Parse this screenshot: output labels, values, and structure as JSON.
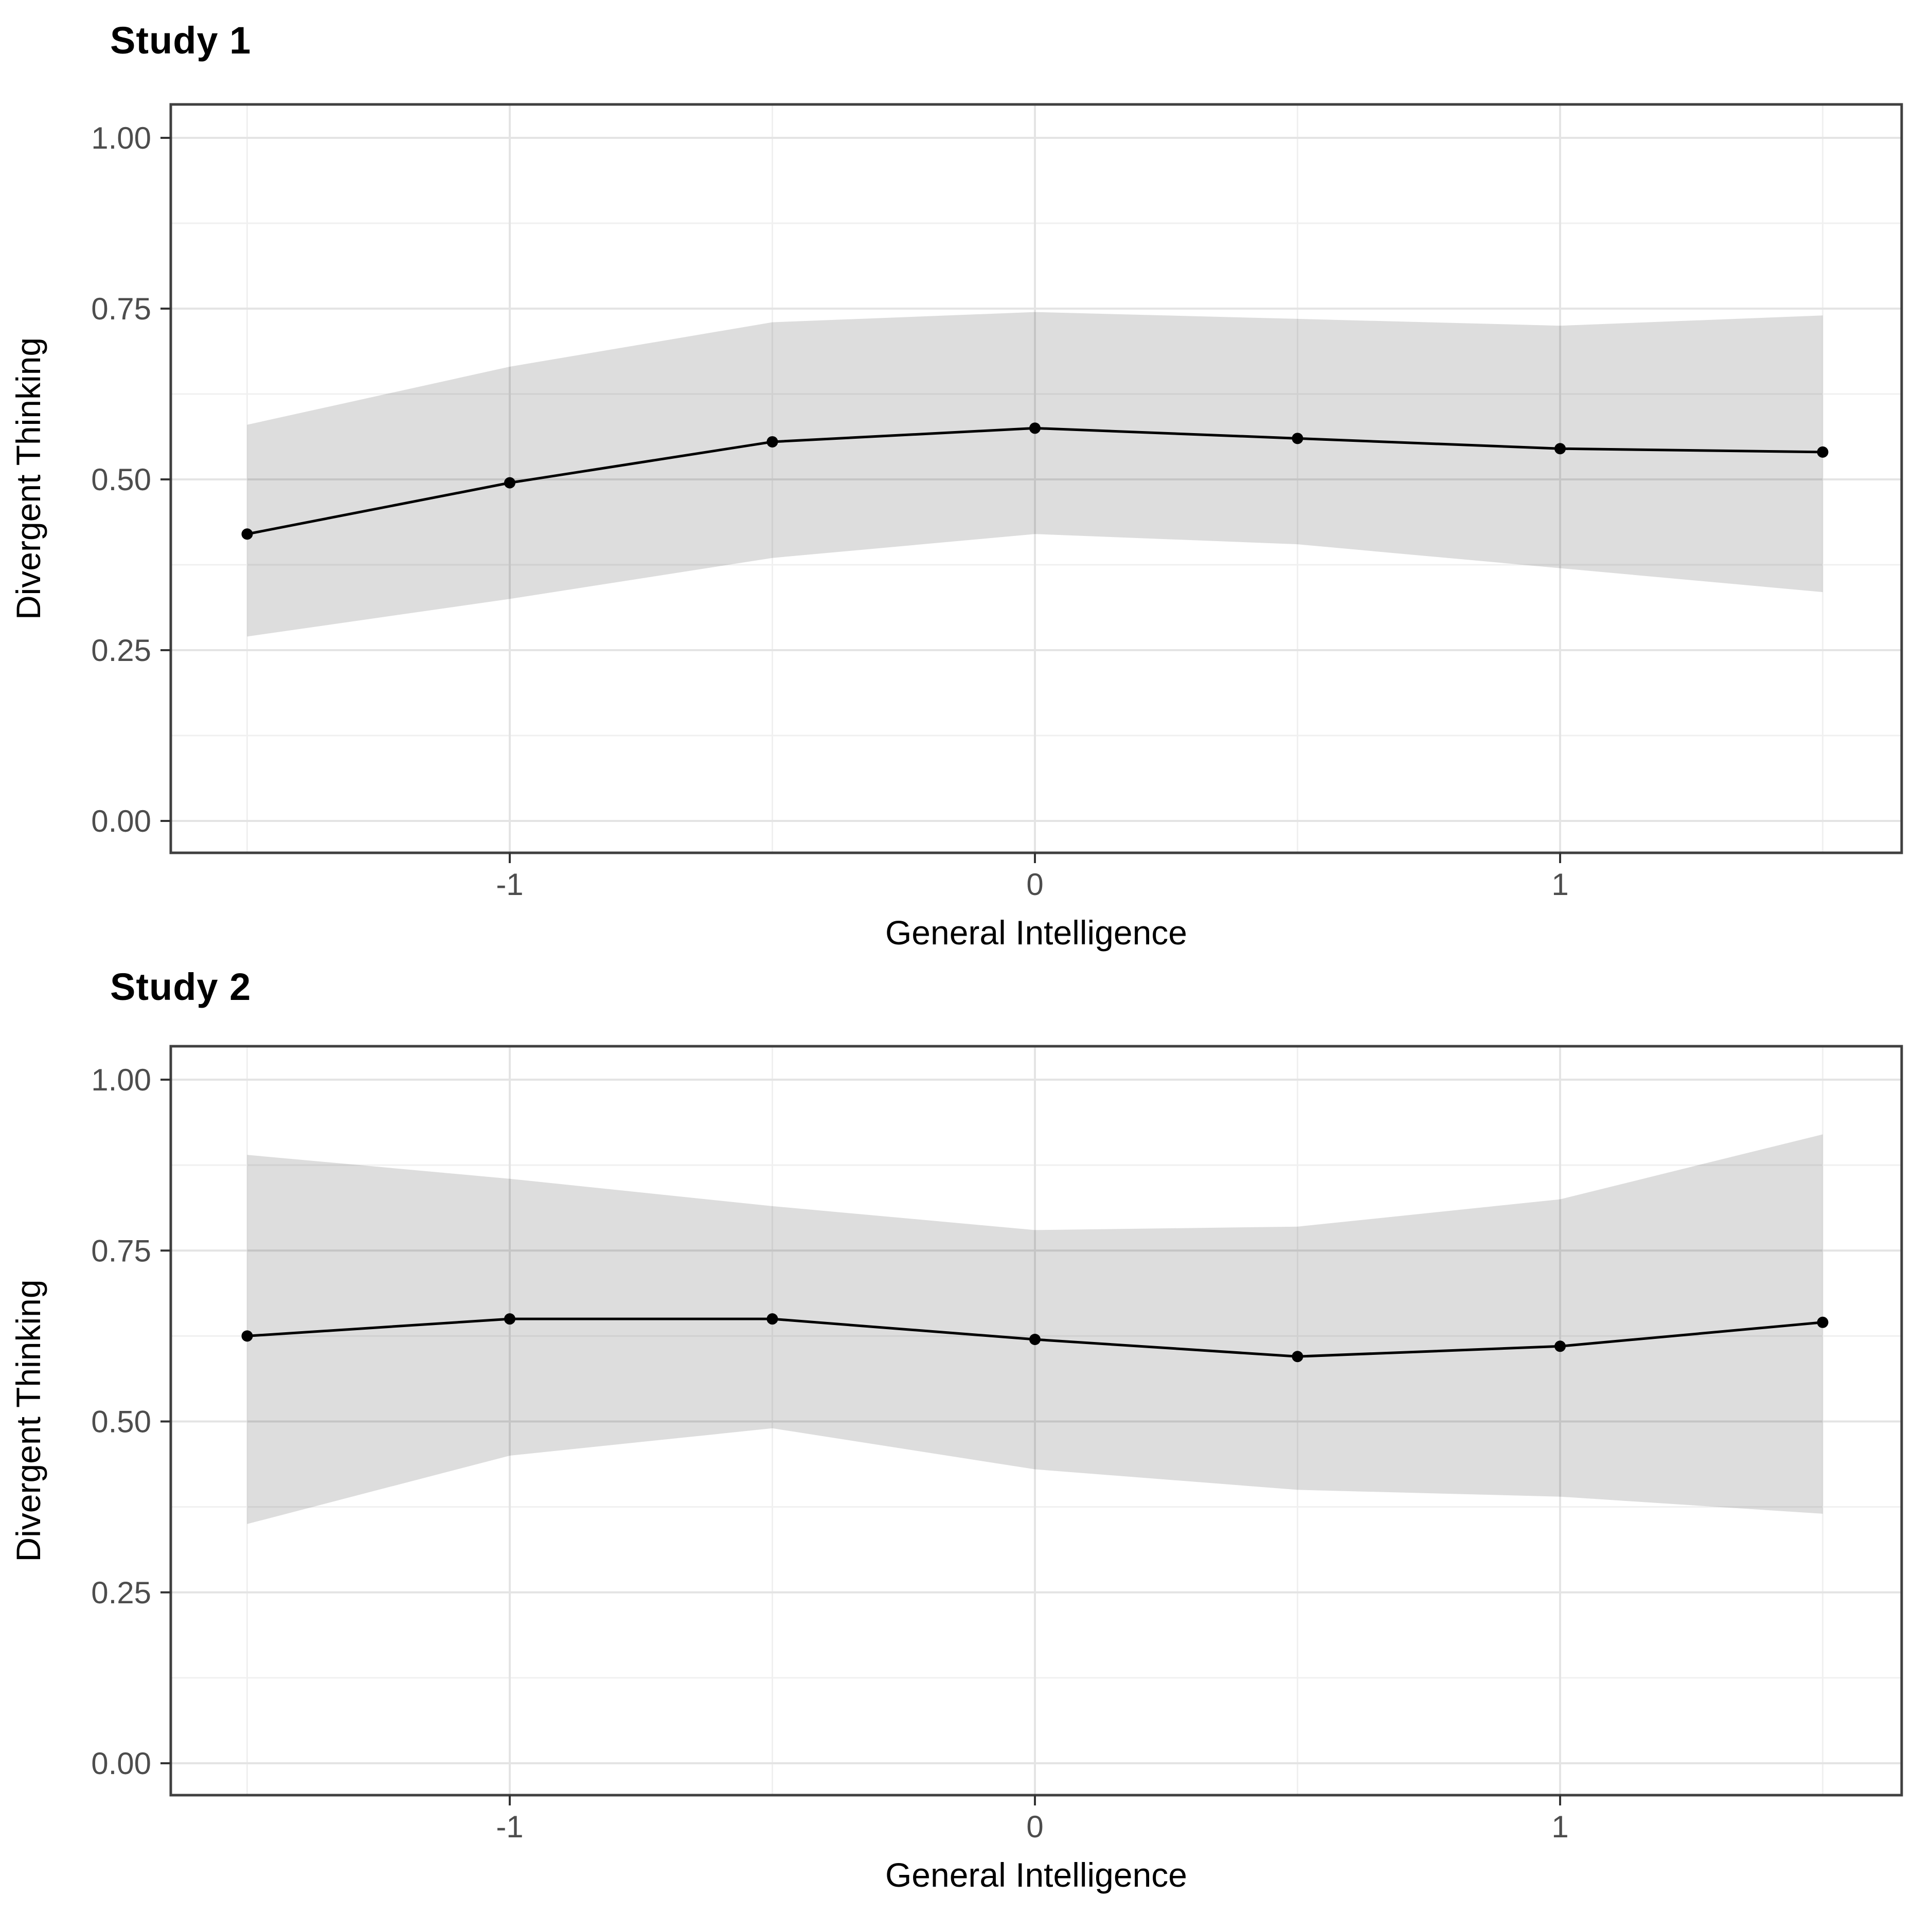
{
  "figure": {
    "background_color": "#ffffff",
    "panel_border_color": "#404040",
    "grid_major_color": "#e4e4e4",
    "grid_minor_color": "#f0f0f0",
    "ribbon_color": "rgba(0,0,0,0.135)",
    "line_color": "#000000",
    "point_color": "#000000",
    "tick_mark_color": "#333333",
    "tick_label_color": "#4d4d4d",
    "axis_title_color": "#000000"
  },
  "chart_data": [
    {
      "type": "line",
      "title": "Study 1",
      "xlabel": "General Intelligence",
      "ylabel": "Divergent Thinking",
      "xlim": [
        -1.645,
        1.65
      ],
      "ylim": [
        -0.047,
        1.049
      ],
      "grid": "on",
      "legend": "none",
      "x_tick_labels": [
        "-1",
        "0",
        "1"
      ],
      "x_tick_values": [
        -1,
        0,
        1
      ],
      "x_minor_values": [
        -1.5,
        -0.5,
        0.5,
        1.5
      ],
      "y_tick_labels": [
        "0.00",
        "0.25",
        "0.50",
        "0.75",
        "1.00"
      ],
      "y_tick_values": [
        0,
        0.25,
        0.5,
        0.75,
        1.0
      ],
      "y_minor_values": [
        0.125,
        0.375,
        0.625,
        0.875
      ],
      "series": [
        {
          "name": "fitted-line",
          "x": [
            -1.5,
            -1.0,
            -0.5,
            0.0,
            0.5,
            1.0,
            1.5
          ],
          "y": [
            0.42,
            0.495,
            0.555,
            0.575,
            0.56,
            0.545,
            0.54
          ]
        }
      ],
      "ribbon": {
        "x": [
          -1.5,
          -1.0,
          -0.5,
          0.0,
          0.5,
          1.0,
          1.5
        ],
        "lower": [
          0.27,
          0.325,
          0.385,
          0.42,
          0.405,
          0.37,
          0.335
        ],
        "upper": [
          0.58,
          0.665,
          0.73,
          0.745,
          0.735,
          0.725,
          0.74
        ]
      }
    },
    {
      "type": "line",
      "title": "Study 2",
      "xlabel": "General Intelligence",
      "ylabel": "Divergent Thinking",
      "xlim": [
        -1.645,
        1.65
      ],
      "ylim": [
        -0.047,
        1.049
      ],
      "grid": "on",
      "legend": "none",
      "x_tick_labels": [
        "-1",
        "0",
        "1"
      ],
      "x_tick_values": [
        -1,
        0,
        1
      ],
      "x_minor_values": [
        -1.5,
        -0.5,
        0.5,
        1.5
      ],
      "y_tick_labels": [
        "0.00",
        "0.25",
        "0.50",
        "0.75",
        "1.00"
      ],
      "y_tick_values": [
        0,
        0.25,
        0.5,
        0.75,
        1.0
      ],
      "y_minor_values": [
        0.125,
        0.375,
        0.625,
        0.875
      ],
      "series": [
        {
          "name": "fitted-line",
          "x": [
            -1.5,
            -1.0,
            -0.5,
            0.0,
            0.5,
            1.0,
            1.5
          ],
          "y": [
            0.625,
            0.65,
            0.65,
            0.62,
            0.595,
            0.61,
            0.645
          ]
        }
      ],
      "ribbon": {
        "x": [
          -1.5,
          -1.0,
          -0.5,
          0.0,
          0.5,
          1.0,
          1.5
        ],
        "lower": [
          0.35,
          0.45,
          0.49,
          0.43,
          0.4,
          0.39,
          0.365
        ],
        "upper": [
          0.89,
          0.855,
          0.815,
          0.78,
          0.785,
          0.825,
          0.92
        ]
      }
    }
  ]
}
